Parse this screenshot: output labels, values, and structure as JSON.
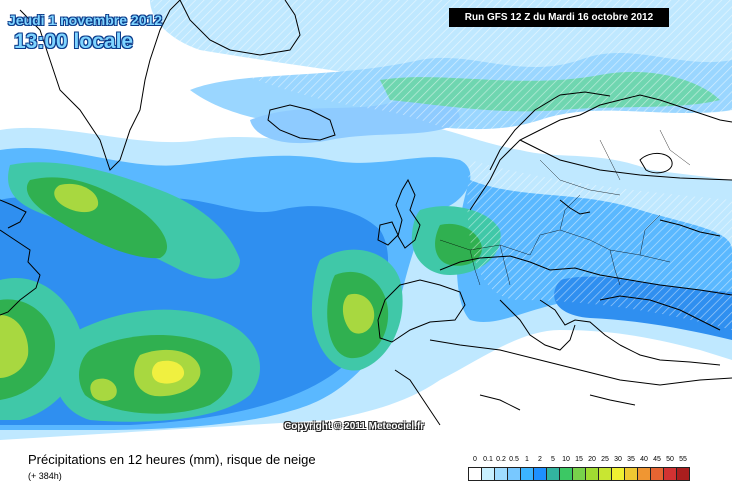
{
  "header": {
    "valid_date": "Jeudi 1 novembre 2012",
    "local_time": "13:00 locale",
    "run_info": "Run GFS 12 Z du Mardi 16 octobre 2012"
  },
  "map": {
    "copyright": "Copyright © 2011 Meteociel.fr",
    "colors": {
      "ocean_background": "#ffffff",
      "coastline": "#000000",
      "level_light_blue": "#bfe8ff",
      "level_sky_blue": "#5ab8ff",
      "level_blue": "#2f8ff0",
      "level_teal": "#40c8a8",
      "level_green": "#30b050",
      "level_yellow_green": "#a8d840",
      "level_yellow": "#f0f040"
    }
  },
  "footer": {
    "product_title": "Précipitations en 12 heures (mm), risque de neige",
    "forecast_hour": "(+ 384h)"
  },
  "legend": {
    "labels": [
      "0",
      "0.1",
      "0.2",
      "0.5",
      "1",
      "2",
      "5",
      "10",
      "15",
      "20",
      "25",
      "30",
      "35",
      "40",
      "45",
      "50",
      "55"
    ],
    "colors": [
      "#ffffff",
      "#c8f0ff",
      "#a0dcff",
      "#78c8ff",
      "#3cb4ff",
      "#1e90ff",
      "#32b4a0",
      "#3cc864",
      "#78d24b",
      "#a0dc32",
      "#c8e632",
      "#f0f032",
      "#f0c832",
      "#f09632",
      "#e66432",
      "#d23232",
      "#aa1e1e"
    ]
  }
}
